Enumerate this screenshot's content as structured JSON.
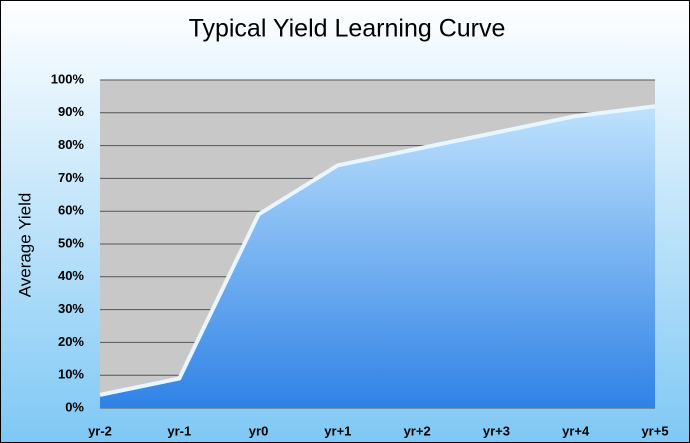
{
  "chart_data": {
    "type": "area",
    "title": "Typical Yield Learning Curve",
    "y_label": "Average Yield",
    "categories": [
      "yr-2",
      "yr-1",
      "yr0",
      "yr+1",
      "yr+2",
      "yr+3",
      "yr+4",
      "yr+5"
    ],
    "values": [
      4,
      9,
      59,
      74,
      79,
      84,
      89,
      92
    ],
    "color": "#3a8ee8",
    "ylim": [
      0,
      100
    ],
    "yticks": [
      {
        "value": 0,
        "label": "0%"
      },
      {
        "value": 10,
        "label": "10%"
      },
      {
        "value": 20,
        "label": "20%"
      },
      {
        "value": 30,
        "label": "30%"
      },
      {
        "value": 40,
        "label": "40%"
      },
      {
        "value": 50,
        "label": "50%"
      },
      {
        "value": 60,
        "label": "60%"
      },
      {
        "value": 70,
        "label": "70%"
      },
      {
        "value": 80,
        "label": "80%"
      },
      {
        "value": 90,
        "label": "90%"
      },
      {
        "value": 100,
        "label": "100%"
      }
    ],
    "grid": true
  }
}
